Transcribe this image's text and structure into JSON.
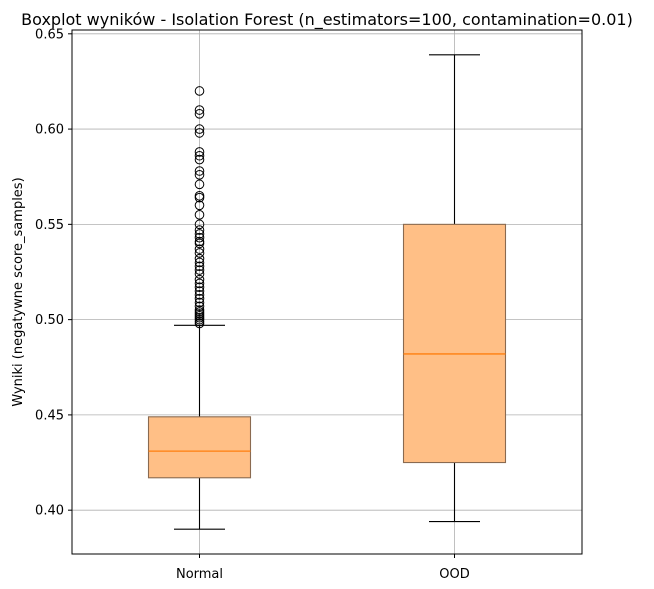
{
  "chart_data": {
    "type": "boxplot",
    "title": "Boxplot wyników - Isolation Forest (n_estimators=100, contamination=0.01)",
    "xlabel": "",
    "ylabel": "Wyniki (negatywne score_samples)",
    "categories": [
      "Normal",
      "OOD"
    ],
    "ylim": [
      0.377,
      0.652
    ],
    "yticks": [
      0.4,
      0.45,
      0.5,
      0.55,
      0.6,
      0.65
    ],
    "ytick_labels": [
      "0.40",
      "0.45",
      "0.50",
      "0.55",
      "0.60",
      "0.65"
    ],
    "grid": true,
    "colors": {
      "box_fill": "#ffbf86",
      "box_edge": "#8a6a50",
      "median": "#ff7f0e",
      "whisker": "#000000",
      "grid": "#b0b0b0"
    },
    "boxes": [
      {
        "label": "Normal",
        "whisker_low": 0.39,
        "q1": 0.417,
        "median": 0.431,
        "q3": 0.449,
        "whisker_high": 0.497,
        "outliers": [
          0.62,
          0.61,
          0.608,
          0.6,
          0.598,
          0.588,
          0.586,
          0.584,
          0.578,
          0.576,
          0.571,
          0.565,
          0.564,
          0.56,
          0.555,
          0.55,
          0.547,
          0.545,
          0.543,
          0.541,
          0.54,
          0.537,
          0.535,
          0.532,
          0.53,
          0.528,
          0.526,
          0.524,
          0.521,
          0.519,
          0.517,
          0.515,
          0.513,
          0.511,
          0.509,
          0.507,
          0.505,
          0.504,
          0.503,
          0.502,
          0.501,
          0.5,
          0.499,
          0.498
        ]
      },
      {
        "label": "OOD",
        "whisker_low": 0.394,
        "q1": 0.425,
        "median": 0.482,
        "q3": 0.55,
        "whisker_high": 0.639,
        "outliers": []
      }
    ]
  }
}
